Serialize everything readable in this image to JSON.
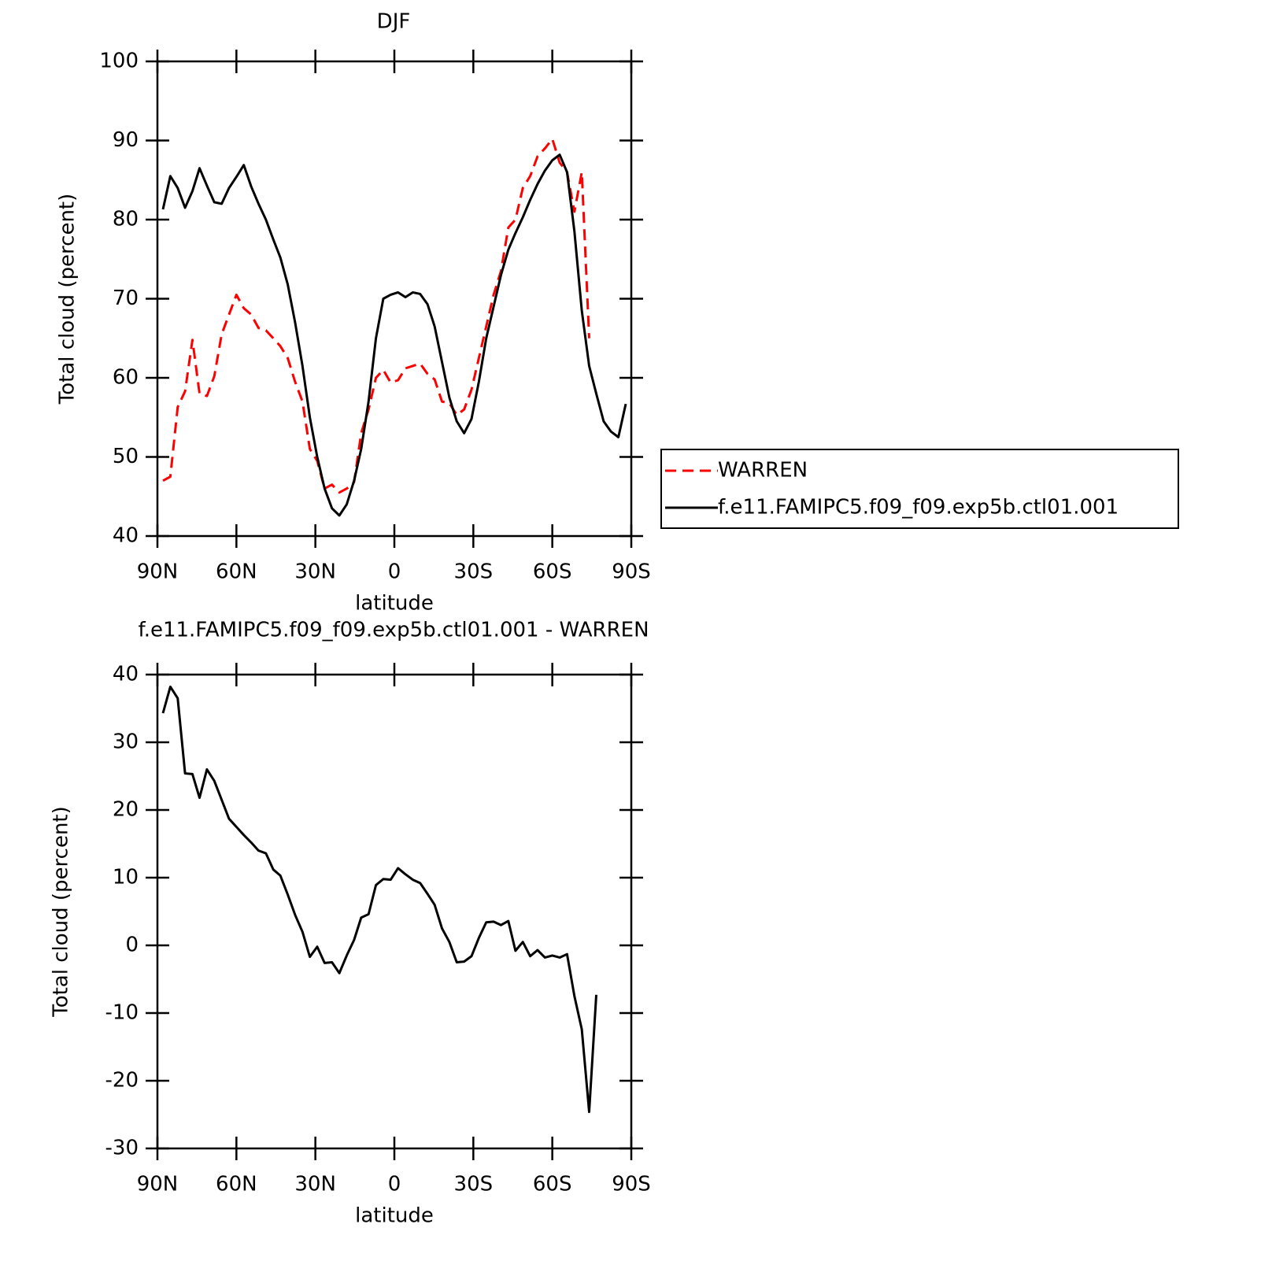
{
  "chart_data": [
    {
      "type": "line",
      "title": "DJF",
      "xlabel": "latitude",
      "ylabel": "Total cloud (percent)",
      "x": [
        87.9,
        85.1,
        82.3,
        79.5,
        76.7,
        74.0,
        71.2,
        68.4,
        65.6,
        62.8,
        60.0,
        57.2,
        54.4,
        51.6,
        48.8,
        46.0,
        43.3,
        40.5,
        37.7,
        34.9,
        32.1,
        29.3,
        26.5,
        23.7,
        20.9,
        18.1,
        15.3,
        12.6,
        9.8,
        7.0,
        4.2,
        1.4,
        -1.4,
        -4.2,
        -7.0,
        -9.8,
        -12.6,
        -15.3,
        -18.1,
        -20.9,
        -23.7,
        -26.5,
        -29.3,
        -32.1,
        -34.9,
        -37.7,
        -40.5,
        -43.3,
        -46.0,
        -48.8,
        -51.6,
        -54.4,
        -57.2,
        -60.0,
        -62.8,
        -65.6,
        -68.4,
        -71.2,
        -74.0,
        -76.7,
        -79.5,
        -82.3,
        -85.1,
        -87.9
      ],
      "series": [
        {
          "name": "WARREN",
          "color": "#ff0000",
          "linestyle": "dashed",
          "values": [
            47.0,
            47.5,
            56.3,
            58.3,
            64.8,
            58.0,
            57.7,
            60.2,
            65.5,
            68.0,
            70.5,
            68.8,
            68.0,
            66.3,
            66.0,
            65.0,
            64.0,
            62.5,
            59.5,
            57.0,
            51.0,
            49.5,
            46.0,
            46.5,
            45.5,
            46.0,
            46.8,
            53.0,
            56.0,
            60.0,
            61.0,
            59.4,
            59.7,
            61.2,
            61.5,
            61.8,
            60.5,
            59.8,
            57.0,
            56.8,
            55.3,
            56.0,
            58.5,
            62.5,
            66.5,
            70.5,
            73.5,
            79.0,
            80.0,
            84.0,
            85.5,
            88.0,
            89.0,
            90.2,
            87.2,
            86.0,
            81.0,
            86.0,
            65.0,
            null,
            null,
            null,
            null,
            null
          ]
        },
        {
          "name": "f.e11.FAMIPC5.f09_f09.exp5b.ctl01.001",
          "color": "#000000",
          "linestyle": "solid",
          "values": [
            81.3,
            85.5,
            84.0,
            81.5,
            83.6,
            86.5,
            84.3,
            82.2,
            82.0,
            84.0,
            85.4,
            86.9,
            84.2,
            82.0,
            80.0,
            77.5,
            75.2,
            71.8,
            67.0,
            61.5,
            55.0,
            50.0,
            46.0,
            43.5,
            42.6,
            44.0,
            47.0,
            51.0,
            57.0,
            65.0,
            70.0,
            70.5,
            70.8,
            70.2,
            70.8,
            70.6,
            69.3,
            66.5,
            62.0,
            57.5,
            54.5,
            53.0,
            54.8,
            59.5,
            65.0,
            69.0,
            73.0,
            76.2,
            78.3,
            80.3,
            82.5,
            84.5,
            86.2,
            87.5,
            88.2,
            86.0,
            78.5,
            68.5,
            61.5,
            58.0,
            54.5,
            53.2,
            52.5,
            56.7
          ]
        }
      ],
      "xlim": [
        90,
        -90
      ],
      "xticks": [
        {
          "value": 90,
          "label": "90N"
        },
        {
          "value": 60,
          "label": "60N"
        },
        {
          "value": 30,
          "label": "30N"
        },
        0,
        {
          "value": -30,
          "label": "30S"
        },
        {
          "value": -60,
          "label": "60S"
        },
        {
          "value": -90,
          "label": "90S"
        }
      ],
      "ylim": [
        40,
        100
      ],
      "yticks": [
        40,
        50,
        60,
        70,
        80,
        90,
        100
      ],
      "legend": "right"
    },
    {
      "type": "line",
      "title": "f.e11.FAMIPC5.f09_f09.exp5b.ctl01.001 - WARREN",
      "xlabel": "latitude",
      "ylabel": "Total cloud (percent)",
      "x": [
        87.9,
        85.1,
        82.3,
        79.5,
        76.7,
        74.0,
        71.2,
        68.4,
        65.6,
        62.8,
        60.0,
        57.2,
        54.4,
        51.6,
        48.8,
        46.0,
        43.3,
        40.5,
        37.7,
        34.9,
        32.1,
        29.3,
        26.5,
        23.7,
        20.9,
        18.1,
        15.3,
        12.6,
        9.8,
        7.0,
        4.2,
        1.4,
        -1.4,
        -4.2,
        -7.0,
        -9.8,
        -12.6,
        -15.3,
        -18.1,
        -20.9,
        -23.7,
        -26.5,
        -29.3,
        -32.1,
        -34.9,
        -37.7,
        -40.5,
        -43.3,
        -46.0,
        -48.8,
        -51.6,
        -54.4,
        -57.2,
        -60.0,
        -62.8,
        -65.6,
        -68.4,
        -71.2,
        -74.0,
        -76.7,
        -79.5,
        -82.3,
        -85.1,
        -87.9
      ],
      "series": [
        {
          "color": "#000000",
          "linestyle": "solid",
          "values": [
            34.3,
            38.2,
            36.5,
            25.4,
            25.3,
            21.8,
            26.0,
            24.3,
            21.5,
            18.7,
            17.5,
            16.3,
            15.2,
            14.0,
            13.6,
            11.2,
            10.3,
            7.5,
            4.5,
            2.0,
            -1.7,
            -0.2,
            -2.6,
            -2.5,
            -4.1,
            -1.5,
            0.8,
            4.1,
            4.6,
            8.9,
            9.8,
            9.7,
            11.4,
            10.5,
            9.7,
            9.2,
            7.6,
            6.0,
            2.5,
            0.5,
            -2.5,
            -2.4,
            -1.6,
            1.1,
            3.4,
            3.5,
            3.0,
            3.6,
            -0.8,
            0.5,
            -1.6,
            -0.7,
            -1.8,
            -1.5,
            -1.8,
            -1.3,
            -7.5,
            -12.4,
            -24.6,
            -7.3,
            null,
            null,
            null,
            null
          ]
        }
      ],
      "xlim": [
        90,
        -90
      ],
      "xticks": [
        {
          "value": 90,
          "label": "90N"
        },
        {
          "value": 60,
          "label": "60N"
        },
        {
          "value": 30,
          "label": "30N"
        },
        0,
        {
          "value": -30,
          "label": "30S"
        },
        {
          "value": -60,
          "label": "60S"
        },
        {
          "value": -90,
          "label": "90S"
        }
      ],
      "ylim": [
        -30,
        40
      ],
      "yticks": [
        -30,
        -20,
        -10,
        0,
        10,
        20,
        30,
        40
      ]
    }
  ]
}
